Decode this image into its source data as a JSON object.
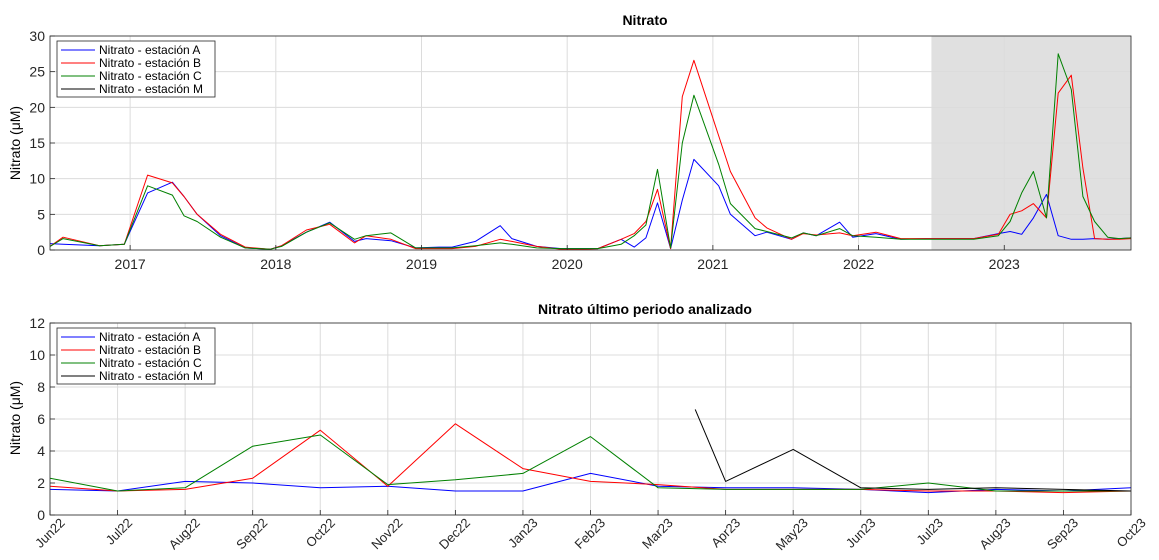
{
  "chart_data": [
    {
      "type": "line",
      "title": "Nitrato",
      "xlabel": "",
      "ylabel": "Nitrato (μM)",
      "xlim": [
        2016.45,
        2023.87
      ],
      "ylim": [
        0,
        30
      ],
      "yticks": [
        0,
        5,
        10,
        15,
        20,
        25,
        30
      ],
      "xticks": [
        2017,
        2018,
        2019,
        2020,
        2021,
        2022,
        2023
      ],
      "xtick_labels": [
        "2017",
        "2018",
        "2019",
        "2020",
        "2021",
        "2022",
        "2023"
      ],
      "grid": true,
      "legend_position": "top-left",
      "shaded_region": [
        2022.5,
        2023.87
      ],
      "series": [
        {
          "name": "Nitrato - estación A",
          "color": "#0000ff",
          "points": [
            [
              2016.45,
              0.9
            ],
            [
              2016.54,
              0.8
            ],
            [
              2016.79,
              0.6
            ],
            [
              2016.96,
              0.8
            ],
            [
              2017.12,
              8
            ],
            [
              2017.29,
              9.5
            ],
            [
              2017.37,
              7.5
            ],
            [
              2017.46,
              5
            ],
            [
              2017.62,
              2
            ],
            [
              2017.79,
              0.3
            ],
            [
              2017.96,
              0.1
            ],
            [
              2018.04,
              0.6
            ],
            [
              2018.21,
              2.5
            ],
            [
              2018.37,
              3.9
            ],
            [
              2018.54,
              1.2
            ],
            [
              2018.62,
              1.6
            ],
            [
              2018.79,
              1.3
            ],
            [
              2018.96,
              0.3
            ],
            [
              2019.12,
              0.4
            ],
            [
              2019.21,
              0.4
            ],
            [
              2019.37,
              1.2
            ],
            [
              2019.54,
              3.4
            ],
            [
              2019.62,
              1.6
            ],
            [
              2019.79,
              0.5
            ],
            [
              2019.96,
              0.2
            ],
            [
              2020.12,
              0.2
            ],
            [
              2020.21,
              0.2
            ],
            [
              2020.37,
              1.5
            ],
            [
              2020.46,
              0.4
            ],
            [
              2020.54,
              1.7
            ],
            [
              2020.62,
              6.6
            ],
            [
              2020.71,
              0.2
            ],
            [
              2020.79,
              7
            ],
            [
              2020.87,
              12.7
            ],
            [
              2021.04,
              9
            ],
            [
              2021.12,
              5
            ],
            [
              2021.29,
              2
            ],
            [
              2021.37,
              2.5
            ],
            [
              2021.54,
              1.5
            ],
            [
              2021.62,
              2.4
            ],
            [
              2021.71,
              2
            ],
            [
              2021.87,
              3.9
            ],
            [
              2021.96,
              1.8
            ],
            [
              2022.12,
              2.3
            ],
            [
              2022.29,
              1.5
            ],
            [
              2022.46,
              1.6
            ],
            [
              2022.54,
              1.6
            ],
            [
              2022.62,
              1.6
            ],
            [
              2022.79,
              1.6
            ],
            [
              2022.96,
              2.3
            ],
            [
              2023.04,
              2.6
            ],
            [
              2023.12,
              2.2
            ],
            [
              2023.2,
              4.5
            ],
            [
              2023.29,
              7.8
            ],
            [
              2023.37,
              2
            ],
            [
              2023.46,
              1.5
            ],
            [
              2023.54,
              1.5
            ],
            [
              2023.62,
              1.6
            ],
            [
              2023.71,
              1.5
            ],
            [
              2023.79,
              1.6
            ],
            [
              2023.87,
              1.7
            ]
          ]
        },
        {
          "name": "Nitrato - estación B",
          "color": "#ff0000",
          "points": [
            [
              2016.45,
              0.5
            ],
            [
              2016.54,
              1.8
            ],
            [
              2016.79,
              0.6
            ],
            [
              2016.96,
              0.8
            ],
            [
              2017.12,
              10.5
            ],
            [
              2017.29,
              9.4
            ],
            [
              2017.37,
              7.5
            ],
            [
              2017.46,
              5
            ],
            [
              2017.62,
              2.2
            ],
            [
              2017.79,
              0.4
            ],
            [
              2017.96,
              0.1
            ],
            [
              2018.04,
              0.6
            ],
            [
              2018.21,
              2.8
            ],
            [
              2018.37,
              3.6
            ],
            [
              2018.54,
              1
            ],
            [
              2018.62,
              2
            ],
            [
              2018.79,
              1.5
            ],
            [
              2018.96,
              0.2
            ],
            [
              2019.12,
              0.2
            ],
            [
              2019.21,
              0.2
            ],
            [
              2019.37,
              0.5
            ],
            [
              2019.54,
              1.5
            ],
            [
              2019.62,
              1.2
            ],
            [
              2019.79,
              0.5
            ],
            [
              2019.96,
              0.1
            ],
            [
              2020.12,
              0.1
            ],
            [
              2020.21,
              0.2
            ],
            [
              2020.37,
              1.5
            ],
            [
              2020.46,
              2.3
            ],
            [
              2020.54,
              4
            ],
            [
              2020.62,
              8.5
            ],
            [
              2020.71,
              0.2
            ],
            [
              2020.79,
              21.5
            ],
            [
              2020.87,
              26.6
            ],
            [
              2021.04,
              16
            ],
            [
              2021.12,
              11
            ],
            [
              2021.29,
              4.5
            ],
            [
              2021.37,
              3.1
            ],
            [
              2021.54,
              1.5
            ],
            [
              2021.62,
              2.3
            ],
            [
              2021.71,
              2.1
            ],
            [
              2021.87,
              2.4
            ],
            [
              2021.96,
              2
            ],
            [
              2022.12,
              2.5
            ],
            [
              2022.29,
              1.6
            ],
            [
              2022.46,
              1.6
            ],
            [
              2022.54,
              1.6
            ],
            [
              2022.62,
              1.6
            ],
            [
              2022.79,
              1.6
            ],
            [
              2022.96,
              2.2
            ],
            [
              2023.04,
              5
            ],
            [
              2023.12,
              5.5
            ],
            [
              2023.2,
              6.5
            ],
            [
              2023.29,
              4.5
            ],
            [
              2023.37,
              22
            ],
            [
              2023.46,
              24.5
            ],
            [
              2023.54,
              11.5
            ],
            [
              2023.62,
              1.6
            ],
            [
              2023.71,
              1.5
            ],
            [
              2023.79,
              1.5
            ],
            [
              2023.87,
              1.6
            ]
          ]
        },
        {
          "name": "Nitrato - estación C",
          "color": "#008000",
          "points": [
            [
              2016.45,
              0.5
            ],
            [
              2016.54,
              1.6
            ],
            [
              2016.79,
              0.6
            ],
            [
              2016.96,
              0.8
            ],
            [
              2017.12,
              9
            ],
            [
              2017.29,
              7.7
            ],
            [
              2017.37,
              4.8
            ],
            [
              2017.46,
              4
            ],
            [
              2017.62,
              1.8
            ],
            [
              2017.79,
              0.3
            ],
            [
              2017.96,
              0.1
            ],
            [
              2018.04,
              0.5
            ],
            [
              2018.21,
              2.5
            ],
            [
              2018.37,
              3.8
            ],
            [
              2018.54,
              1.5
            ],
            [
              2018.62,
              2
            ],
            [
              2018.79,
              2.4
            ],
            [
              2018.96,
              0.3
            ],
            [
              2019.12,
              0.3
            ],
            [
              2019.21,
              0.3
            ],
            [
              2019.37,
              0.6
            ],
            [
              2019.54,
              1
            ],
            [
              2019.62,
              0.8
            ],
            [
              2019.79,
              0.3
            ],
            [
              2019.96,
              0.2
            ],
            [
              2020.12,
              0.2
            ],
            [
              2020.21,
              0.2
            ],
            [
              2020.37,
              0.8
            ],
            [
              2020.46,
              2
            ],
            [
              2020.54,
              3.5
            ],
            [
              2020.62,
              11.3
            ],
            [
              2020.71,
              0.3
            ],
            [
              2020.79,
              15
            ],
            [
              2020.87,
              21.7
            ],
            [
              2021.04,
              12
            ],
            [
              2021.12,
              6.5
            ],
            [
              2021.29,
              3
            ],
            [
              2021.37,
              2.6
            ],
            [
              2021.54,
              1.7
            ],
            [
              2021.62,
              2.4
            ],
            [
              2021.71,
              2
            ],
            [
              2021.87,
              3
            ],
            [
              2021.96,
              2
            ],
            [
              2022.12,
              1.8
            ],
            [
              2022.29,
              1.5
            ],
            [
              2022.46,
              1.5
            ],
            [
              2022.54,
              1.5
            ],
            [
              2022.62,
              1.5
            ],
            [
              2022.79,
              1.5
            ],
            [
              2022.96,
              2
            ],
            [
              2023.04,
              4
            ],
            [
              2023.12,
              8
            ],
            [
              2023.2,
              11
            ],
            [
              2023.29,
              4.5
            ],
            [
              2023.37,
              27.5
            ],
            [
              2023.46,
              22.5
            ],
            [
              2023.54,
              7.5
            ],
            [
              2023.62,
              4
            ],
            [
              2023.71,
              1.8
            ],
            [
              2023.79,
              1.6
            ],
            [
              2023.87,
              1.7
            ]
          ]
        },
        {
          "name": "Nitrato - estación M",
          "color": "#000000",
          "points": [
            [
              2023.29,
              6.5
            ]
          ]
        }
      ]
    },
    {
      "type": "line",
      "title": "Nitrato último periodo analizado",
      "xlabel": "",
      "ylabel": "Nitrato (μM)",
      "xlim": [
        0,
        16
      ],
      "ylim": [
        0,
        12
      ],
      "yticks": [
        0,
        2,
        4,
        6,
        8,
        10,
        12
      ],
      "xticks": [
        0,
        1,
        2,
        3,
        4,
        5,
        6,
        7,
        8,
        9,
        10,
        11,
        12,
        13,
        14,
        15,
        16
      ],
      "xtick_labels": [
        "Jun22",
        "Jul22",
        "Aug22",
        "Sep22",
        "Oct22",
        "Nov22",
        "Dec22",
        "Jan23",
        "Feb23",
        "Mar23",
        "Apr23",
        "May23",
        "Jun23",
        "Jul23",
        "Aug23",
        "Sep23",
        "Oct23"
      ],
      "grid": true,
      "legend_position": "top-left",
      "series": [
        {
          "name": "Nitrato - estación A",
          "color": "#0000ff",
          "points": [
            [
              0,
              1.6
            ],
            [
              1,
              1.5
            ],
            [
              2,
              2.1
            ],
            [
              3,
              2
            ],
            [
              4,
              1.7
            ],
            [
              5,
              1.8
            ],
            [
              6,
              1.5
            ],
            [
              7,
              1.5
            ],
            [
              8,
              2.6
            ],
            [
              9,
              1.8
            ],
            [
              10,
              1.7
            ],
            [
              11,
              1.7
            ],
            [
              12,
              1.6
            ],
            [
              13,
              1.4
            ],
            [
              14,
              1.6
            ],
            [
              15,
              1.5
            ],
            [
              16,
              1.7
            ]
          ]
        },
        {
          "name": "Nitrato - estación B",
          "color": "#ff0000",
          "points": [
            [
              0,
              1.8
            ],
            [
              1,
              1.5
            ],
            [
              2,
              1.6
            ],
            [
              3,
              2.3
            ],
            [
              4,
              5.3
            ],
            [
              5,
              1.8
            ],
            [
              6,
              5.7
            ],
            [
              7,
              2.9
            ],
            [
              8,
              2.1
            ],
            [
              9,
              1.9
            ],
            [
              10,
              1.6
            ],
            [
              11,
              1.6
            ],
            [
              12,
              1.6
            ],
            [
              13,
              1.5
            ],
            [
              14,
              1.5
            ],
            [
              15,
              1.4
            ],
            [
              16,
              1.5
            ]
          ]
        },
        {
          "name": "Nitrato - estación C",
          "color": "#008000",
          "points": [
            [
              0,
              2.3
            ],
            [
              1,
              1.5
            ],
            [
              2,
              1.7
            ],
            [
              3,
              4.3
            ],
            [
              4,
              5
            ],
            [
              5,
              1.9
            ],
            [
              6,
              2.2
            ],
            [
              7,
              2.6
            ],
            [
              8,
              4.9
            ],
            [
              9,
              1.7
            ],
            [
              10,
              1.6
            ],
            [
              11,
              1.6
            ],
            [
              12,
              1.6
            ],
            [
              13,
              2
            ],
            [
              14,
              1.5
            ],
            [
              15,
              1.5
            ],
            [
              16,
              1.5
            ]
          ]
        },
        {
          "name": "Nitrato - estación M",
          "color": "#000000",
          "points": [
            [
              9.55,
              6.6
            ],
            [
              10,
              2.1
            ],
            [
              11,
              4.1
            ],
            [
              12,
              1.7
            ],
            [
              13,
              1.6
            ],
            [
              14,
              1.7
            ],
            [
              15,
              1.6
            ],
            [
              16,
              1.5
            ]
          ]
        }
      ]
    }
  ]
}
